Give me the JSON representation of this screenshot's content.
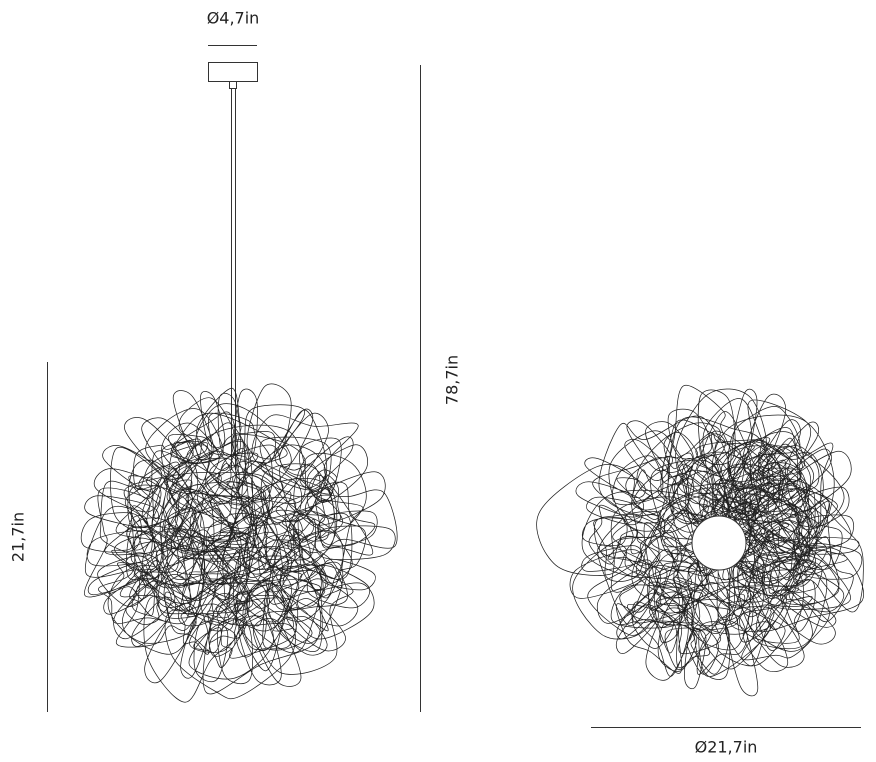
{
  "dimensions": {
    "canopy_diameter": "Ø4,7in",
    "total_height": "78,7in",
    "shade_height": "21,7in",
    "shade_diameter": "Ø21,7in"
  }
}
